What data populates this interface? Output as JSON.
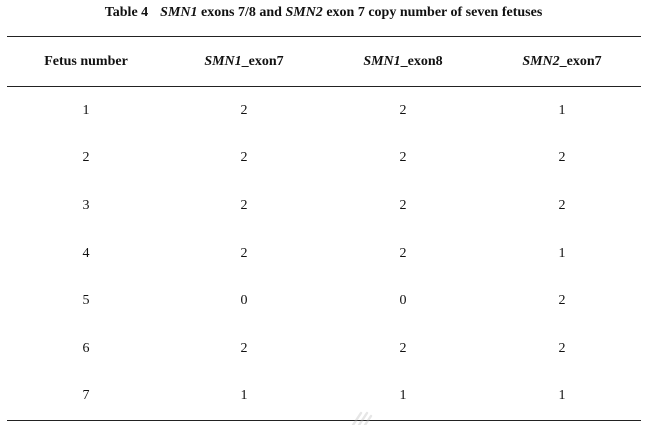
{
  "caption": {
    "label": "Table 4",
    "gene1": "SMN1",
    "text1": " exons 7/8 and ",
    "gene2": "SMN2",
    "text2": " exon 7 copy number of seven fetuses"
  },
  "table": {
    "headers": [
      {
        "gene": "",
        "suffix": "Fetus number"
      },
      {
        "gene": "SMN1",
        "suffix": "_exon7"
      },
      {
        "gene": "SMN1",
        "suffix": "_exon8"
      },
      {
        "gene": "SMN2",
        "suffix": "_exon7"
      }
    ],
    "rows": [
      [
        "1",
        "2",
        "2",
        "1"
      ],
      [
        "2",
        "2",
        "2",
        "2"
      ],
      [
        "3",
        "2",
        "2",
        "2"
      ],
      [
        "4",
        "2",
        "2",
        "1"
      ],
      [
        "5",
        "0",
        "0",
        "2"
      ],
      [
        "6",
        "2",
        "2",
        "2"
      ],
      [
        "7",
        "1",
        "1",
        "1"
      ]
    ]
  },
  "colors": {
    "rule": "#222222",
    "text": "#111111",
    "watermark": "#b8b8b8"
  }
}
